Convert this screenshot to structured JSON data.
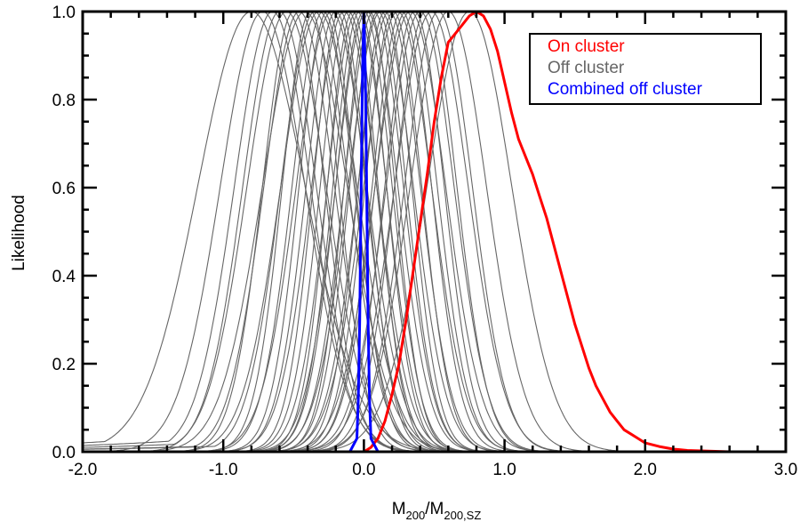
{
  "chart_data": {
    "type": "line",
    "xlabel": "M200/M200,SZ",
    "xlabel_parts": {
      "main": "M",
      "sub1": "200",
      "slash": "/",
      "main2": "M",
      "sub2": "200,SZ"
    },
    "ylabel": "Likelihood",
    "xlim": [
      -2.0,
      3.0
    ],
    "ylim": [
      0.0,
      1.0
    ],
    "x_ticks": [
      -2.0,
      -1.0,
      0.0,
      1.0,
      2.0,
      3.0
    ],
    "x_tick_labels": [
      "-2.0",
      "-1.0",
      "0.0",
      "1.0",
      "2.0",
      "3.0"
    ],
    "y_ticks": [
      0.0,
      0.2,
      0.4,
      0.6,
      0.8,
      1.0
    ],
    "y_tick_labels": [
      "0.0",
      "0.2",
      "0.4",
      "0.6",
      "0.8",
      "1.0"
    ],
    "legend": {
      "position": "top-right",
      "entries": [
        {
          "label": "On cluster",
          "color": "#ff0000"
        },
        {
          "label": "Off cluster",
          "color": "#666666"
        },
        {
          "label": "Combined off cluster",
          "color": "#0000ff"
        }
      ]
    },
    "series": [
      {
        "name": "On cluster",
        "color": "#ff0000",
        "x": [
          -0.05,
          0.0,
          0.05,
          0.1,
          0.15,
          0.2,
          0.25,
          0.3,
          0.35,
          0.4,
          0.45,
          0.5,
          0.55,
          0.6,
          0.65,
          0.7,
          0.75,
          0.8,
          0.85,
          0.9,
          0.95,
          1.0,
          1.05,
          1.1,
          1.15,
          1.2,
          1.25,
          1.3,
          1.35,
          1.4,
          1.45,
          1.5,
          1.55,
          1.6,
          1.65,
          1.7,
          1.75,
          1.8,
          1.85,
          1.9,
          1.95,
          2.0,
          2.1,
          2.2,
          2.3,
          2.4,
          2.5,
          2.6,
          2.8,
          3.0
        ],
        "y": [
          0.0,
          0.0,
          0.01,
          0.03,
          0.07,
          0.13,
          0.2,
          0.3,
          0.41,
          0.52,
          0.63,
          0.75,
          0.85,
          0.93,
          0.95,
          0.97,
          0.99,
          1.0,
          0.99,
          0.96,
          0.91,
          0.84,
          0.77,
          0.71,
          0.67,
          0.63,
          0.58,
          0.53,
          0.47,
          0.41,
          0.35,
          0.29,
          0.24,
          0.19,
          0.15,
          0.12,
          0.09,
          0.07,
          0.05,
          0.04,
          0.03,
          0.02,
          0.012,
          0.006,
          0.003,
          0.002,
          0.001,
          0.0,
          0.0,
          0.0
        ]
      },
      {
        "name": "Combined off cluster",
        "color": "#0000ff",
        "x": [
          -0.1,
          -0.05,
          -0.04,
          -0.03,
          -0.02,
          -0.01,
          0.0,
          0.01,
          0.02,
          0.03,
          0.04,
          0.05,
          0.1
        ],
        "y": [
          0.0,
          0.03,
          0.12,
          0.3,
          0.58,
          0.86,
          1.0,
          0.86,
          0.58,
          0.3,
          0.12,
          0.03,
          0.0
        ]
      }
    ],
    "off_cluster_curves": {
      "name": "Off cluster",
      "color": "#666666",
      "centers": [
        -0.8,
        -0.72,
        -0.65,
        -0.6,
        -0.55,
        -0.5,
        -0.46,
        -0.42,
        -0.38,
        -0.35,
        -0.32,
        -0.29,
        -0.26,
        -0.23,
        -0.2,
        -0.17,
        -0.14,
        -0.11,
        -0.08,
        -0.05,
        -0.03,
        0.0,
        0.02,
        0.04,
        0.07,
        0.1,
        0.12,
        0.15,
        0.18,
        0.21,
        0.24,
        0.27,
        0.3,
        0.33,
        0.36,
        0.4,
        0.44,
        0.48,
        0.53,
        0.6,
        0.75
      ],
      "widths": [
        0.38,
        0.3,
        0.27,
        0.26,
        0.28,
        0.22,
        0.25,
        0.3,
        0.2,
        0.24,
        0.27,
        0.22,
        0.2,
        0.25,
        0.21,
        0.19,
        0.23,
        0.2,
        0.18,
        0.21,
        0.19,
        0.2,
        0.22,
        0.18,
        0.21,
        0.2,
        0.23,
        0.19,
        0.22,
        0.2,
        0.24,
        0.21,
        0.22,
        0.25,
        0.21,
        0.24,
        0.22,
        0.26,
        0.24,
        0.27,
        0.3
      ],
      "tails": [
        0.025,
        0.0,
        0.02,
        0.0,
        0.015,
        0.0,
        0.01,
        0.0,
        0.0,
        0.01,
        0.0,
        0.0,
        0.0,
        0.0,
        0.0,
        0.0,
        0.0,
        0.0,
        0.0,
        0.0,
        0.0,
        0.0,
        0.0,
        0.0,
        0.0,
        0.0,
        0.0,
        0.0,
        0.0,
        0.0,
        0.0,
        0.0,
        0.0,
        0.0,
        0.0,
        0.0,
        0.0,
        0.0,
        0.0,
        0.0,
        0.0
      ]
    }
  }
}
